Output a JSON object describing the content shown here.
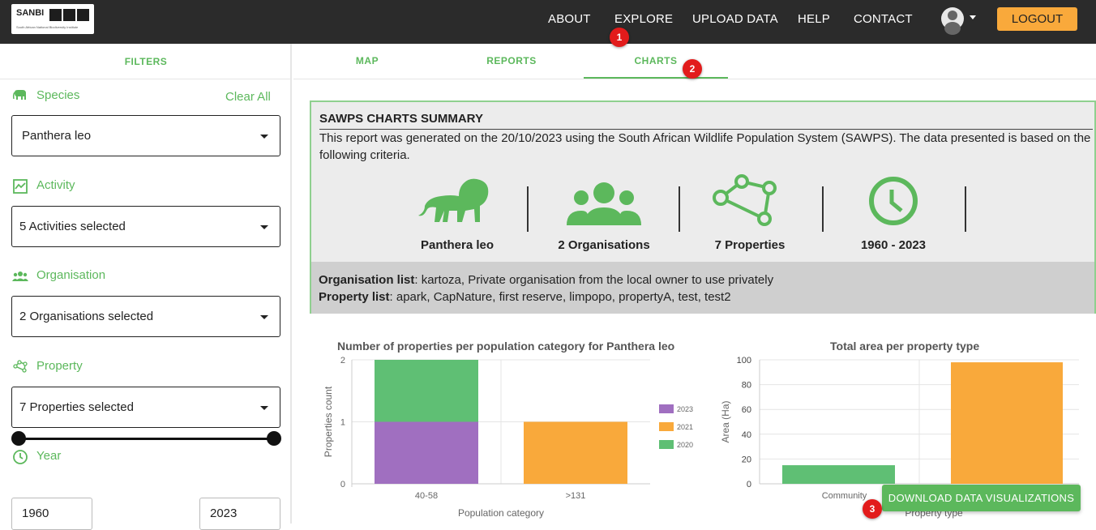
{
  "header": {
    "logo_text": "SANBI",
    "logo_subtitle": "South African National Biodiversity Institute",
    "nav": [
      "ABOUT",
      "EXPLORE",
      "UPLOAD DATA",
      "HELP",
      "CONTACT"
    ],
    "logout_label": "LOGOUT"
  },
  "markers": [
    "1",
    "2",
    "3"
  ],
  "sidebar": {
    "filters_tab": "FILTERS",
    "species_label": "Species",
    "clear_all": "Clear All",
    "species_value": "Panthera leo",
    "activity_label": "Activity",
    "activity_value": "5 Activities selected",
    "organisation_label": "Organisation",
    "organisation_value": "2 Organisations selected",
    "property_label": "Property",
    "property_value": "7 Properties selected",
    "year_label": "Year",
    "year_from": "1960",
    "year_to": "2023"
  },
  "tabs": [
    "MAP",
    "REPORTS",
    "CHARTS"
  ],
  "active_tab": "CHARTS",
  "summary": {
    "title": "SAWPS CHARTS SUMMARY",
    "description": "This report was generated on the 20/10/2023 using the South African Wildlife Population System (SAWPS). The data presented is based on the following criteria.",
    "stats": [
      "Panthera leo",
      "2 Organisations",
      "7 Properties",
      "1960 - 2023"
    ],
    "organisation_list_label": "Organisation list",
    "organisation_list": ": kartoza, Private organisation from the local owner to use privately",
    "property_list_label": "Property list",
    "property_list": ": apark, CapNature, first reserve, limpopo, propertyA, test, test2"
  },
  "download_label": "DOWNLOAD DATA VISUALIZATIONS",
  "colors": {
    "green": "#5cb85c",
    "orange": "#f9a93b",
    "purple": "#a06fc0",
    "bar_green": "#5fbf74"
  },
  "chart_data": [
    {
      "type": "bar",
      "stacked": true,
      "title": "Number of properties per population category for Panthera leo",
      "xlabel": "Population category",
      "ylabel": "Properties count",
      "categories": [
        "40-58",
        ">131"
      ],
      "ylim": [
        0,
        2
      ],
      "yticks": [
        "0",
        "1",
        "2"
      ],
      "legend_position": "right",
      "series": [
        {
          "name": "2023",
          "color": "#a06fc0",
          "values": [
            1,
            0
          ]
        },
        {
          "name": "2021",
          "color": "#f9a93b",
          "values": [
            0,
            1
          ]
        },
        {
          "name": "2020",
          "color": "#5fbf74",
          "values": [
            1,
            0
          ]
        }
      ]
    },
    {
      "type": "bar",
      "title": "Total area per property type",
      "xlabel": "Property type",
      "ylabel": "Area (Ha)",
      "categories": [
        "Community",
        ""
      ],
      "ylim": [
        0,
        100
      ],
      "yticks": [
        "0",
        "20",
        "40",
        "60",
        "80",
        "100"
      ],
      "values": [
        15,
        98
      ],
      "colors": [
        "#5fbf74",
        "#f9a93b"
      ]
    }
  ]
}
